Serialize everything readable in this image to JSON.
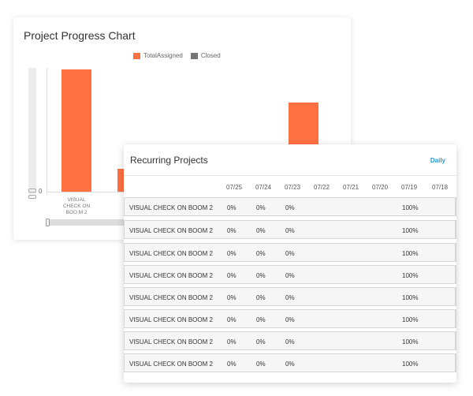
{
  "chart": {
    "title": "Project Progress Chart",
    "legend": [
      {
        "label": "TotalAssigned",
        "color": "#ff7043"
      },
      {
        "label": "Closed",
        "color": "#757575"
      }
    ],
    "y_zero_label": "0",
    "x_label": "VISUAL CHECK ON BOO M 2"
  },
  "chart_data": {
    "type": "bar",
    "title": "Project Progress Chart",
    "categories": [
      "VISUAL CHECK ON BOOM 2",
      "",
      ""
    ],
    "series": [
      {
        "name": "TotalAssigned",
        "values": [
          1,
          0.19,
          0.73
        ]
      },
      {
        "name": "Closed",
        "values": [
          0,
          0,
          0
        ]
      }
    ],
    "ylim": [
      0,
      1
    ],
    "legend": "top-center"
  },
  "table": {
    "title": "Recurring Projects",
    "filter_label": "Daily",
    "columns": [
      "07/25",
      "07/24",
      "07/23",
      "07/22",
      "07/21",
      "07/20",
      "07/19",
      "07/18"
    ],
    "rows": [
      {
        "name": "VISUAL CHECK ON BOOM 2",
        "c1": "0%",
        "c2": "0%",
        "c3": "0%",
        "c7": "100%"
      },
      {
        "name": "VISUAL CHECK ON BOOM 2",
        "c1": "0%",
        "c2": "0%",
        "c3": "0%",
        "c7": "100%"
      },
      {
        "name": "VISUAL CHECK ON BOOM 2",
        "c1": "0%",
        "c2": "0%",
        "c3": "0%",
        "c7": "100%"
      },
      {
        "name": "VISUAL CHECK ON BOOM 2",
        "c1": "0%",
        "c2": "0%",
        "c3": "0%",
        "c7": "100%"
      },
      {
        "name": "VISUAL CHECK ON BOOM 2",
        "c1": "0%",
        "c2": "0%",
        "c3": "0%",
        "c7": "100%"
      },
      {
        "name": "VISUAL CHECK ON BOOM 2",
        "c1": "0%",
        "c2": "0%",
        "c3": "0%",
        "c7": "100%"
      },
      {
        "name": "VISUAL CHECK ON BOOM 2",
        "c1": "0%",
        "c2": "0%",
        "c3": "0%",
        "c7": "100%"
      },
      {
        "name": "VISUAL CHECK ON BOOM 2",
        "c1": "0%",
        "c2": "0%",
        "c3": "0%",
        "c7": "100%"
      }
    ]
  }
}
